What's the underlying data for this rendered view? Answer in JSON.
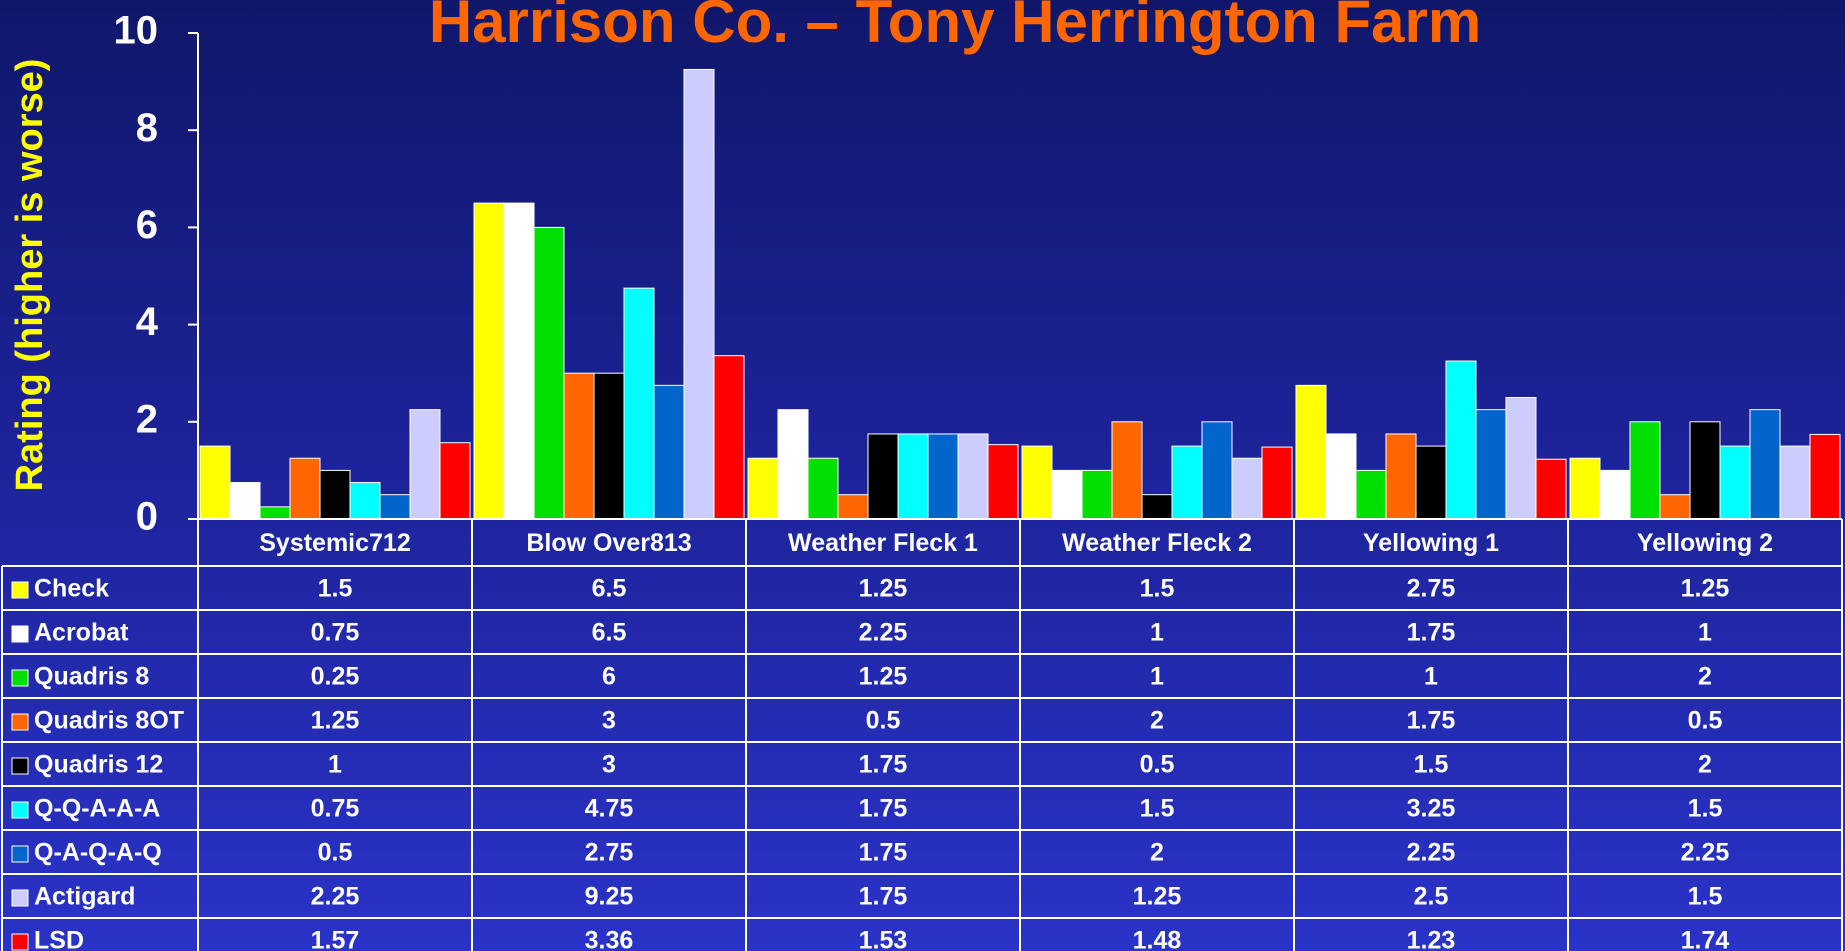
{
  "chart_data": {
    "type": "bar",
    "title": "Harrison Co. – Tony Herrington Farm",
    "y_label": "Rating (higher is worse)",
    "categories": [
      "Systemic712",
      "Blow Over813",
      "Weather Fleck 1",
      "Weather Fleck 2",
      "Yellowing 1",
      "Yellowing 2"
    ],
    "series": [
      {
        "name": "Check",
        "color": "#ffff00",
        "values": [
          1.5,
          6.5,
          1.25,
          1.5,
          2.75,
          1.25
        ]
      },
      {
        "name": "Acrobat",
        "color": "#ffffff",
        "values": [
          0.75,
          6.5,
          2.25,
          1,
          1.75,
          1
        ]
      },
      {
        "name": "Quadris 8",
        "color": "#00e000",
        "values": [
          0.25,
          6,
          1.25,
          1,
          1,
          2
        ]
      },
      {
        "name": "Quadris 8OT",
        "color": "#ff6600",
        "values": [
          1.25,
          3,
          0.5,
          2,
          1.75,
          0.5
        ]
      },
      {
        "name": "Quadris 12",
        "color": "#000000",
        "values": [
          1,
          3,
          1.75,
          0.5,
          1.5,
          2
        ]
      },
      {
        "name": "Q-Q-A-A-A",
        "color": "#00ffff",
        "values": [
          0.75,
          4.75,
          1.75,
          1.5,
          3.25,
          1.5
        ]
      },
      {
        "name": "Q-A-Q-A-Q",
        "color": "#0066cc",
        "values": [
          0.5,
          2.75,
          1.75,
          2,
          2.25,
          2.25
        ]
      },
      {
        "name": "Actigard",
        "color": "#ccccff",
        "values": [
          2.25,
          9.25,
          1.75,
          1.25,
          2.5,
          1.5
        ]
      },
      {
        "name": "LSD",
        "color": "#ff0000",
        "values": [
          1.57,
          3.36,
          1.53,
          1.48,
          1.23,
          1.74
        ]
      }
    ],
    "ylim": [
      0,
      10
    ],
    "yticks": [
      0,
      2,
      4,
      6,
      8,
      10
    ],
    "data_table": true
  }
}
